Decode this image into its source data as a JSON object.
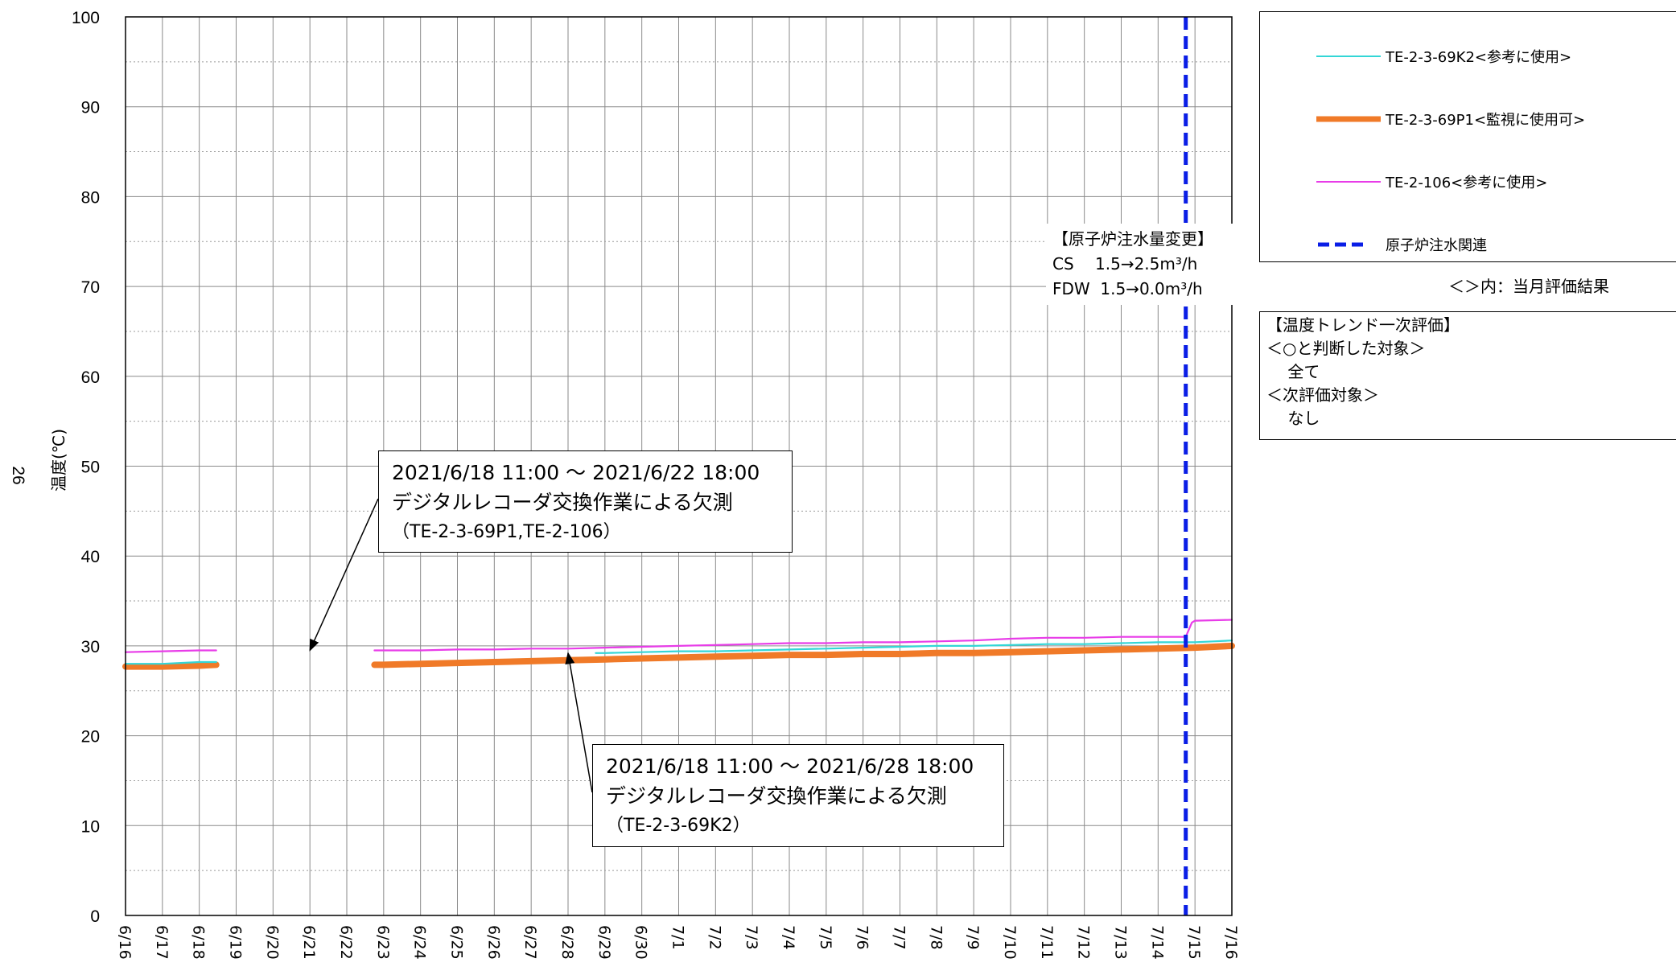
{
  "chart_data": {
    "type": "line",
    "ylabel": "温度(℃)",
    "page_number": "26",
    "ylim": [
      0,
      100
    ],
    "yticks": [
      0,
      10,
      20,
      30,
      40,
      50,
      60,
      70,
      80,
      90,
      100
    ],
    "x_tick_labels": [
      "6/16",
      "6/17",
      "6/18",
      "6/19",
      "6/20",
      "6/21",
      "6/22",
      "6/23",
      "6/24",
      "6/25",
      "6/26",
      "6/27",
      "6/28",
      "6/29",
      "6/30",
      "7/1",
      "7/2",
      "7/3",
      "7/4",
      "7/5",
      "7/6",
      "7/7",
      "7/8",
      "7/9",
      "7/10",
      "7/11",
      "7/12",
      "7/13",
      "7/14",
      "7/15",
      "7/16"
    ],
    "grid": true,
    "legend_position": "right",
    "series": [
      {
        "name": "TE-2-3-69K2<参考に使用>",
        "color": "#33d6d6",
        "segments": [
          [
            [
              "6/16 00:00",
              28.0
            ],
            [
              "6/16 12:00",
              28.0
            ],
            [
              "6/17 00:00",
              28.0
            ],
            [
              "6/17 12:00",
              28.1
            ],
            [
              "6/18 00:00",
              28.2
            ],
            [
              "6/18 11:00",
              28.2
            ]
          ],
          [
            [
              "6/28 18:00",
              29.2
            ],
            [
              "6/29 00:00",
              29.2
            ],
            [
              "6/30 00:00",
              29.3
            ],
            [
              "7/1 00:00",
              29.4
            ],
            [
              "7/2 00:00",
              29.4
            ],
            [
              "7/3 00:00",
              29.5
            ],
            [
              "7/4 00:00",
              29.6
            ],
            [
              "7/5 00:00",
              29.7
            ],
            [
              "7/6 00:00",
              29.8
            ],
            [
              "7/7 00:00",
              29.9
            ],
            [
              "7/8 00:00",
              30.0
            ],
            [
              "7/9 00:00",
              30.0
            ],
            [
              "7/10 00:00",
              30.1
            ],
            [
              "7/11 00:00",
              30.2
            ],
            [
              "7/12 00:00",
              30.2
            ],
            [
              "7/13 00:00",
              30.3
            ],
            [
              "7/14 00:00",
              30.4
            ],
            [
              "7/14 18:00",
              30.4
            ],
            [
              "7/15 00:00",
              30.4
            ],
            [
              "7/15 12:00",
              30.5
            ],
            [
              "7/16 00:00",
              30.6
            ]
          ]
        ]
      },
      {
        "name": "TE-2-3-69P1<監視に使用可>",
        "color": "#f07a28",
        "segments": [
          [
            [
              "6/16 00:00",
              27.7
            ],
            [
              "6/17 00:00",
              27.7
            ],
            [
              "6/18 00:00",
              27.8
            ],
            [
              "6/18 11:00",
              27.9
            ]
          ],
          [
            [
              "6/22 18:00",
              27.9
            ],
            [
              "6/23 00:00",
              27.9
            ],
            [
              "6/24 00:00",
              28.0
            ],
            [
              "6/25 00:00",
              28.1
            ],
            [
              "6/26 00:00",
              28.2
            ],
            [
              "6/27 00:00",
              28.3
            ],
            [
              "6/28 00:00",
              28.4
            ],
            [
              "6/29 00:00",
              28.5
            ],
            [
              "6/30 00:00",
              28.6
            ],
            [
              "7/1 00:00",
              28.7
            ],
            [
              "7/2 00:00",
              28.8
            ],
            [
              "7/3 00:00",
              28.9
            ],
            [
              "7/4 00:00",
              29.0
            ],
            [
              "7/5 00:00",
              29.0
            ],
            [
              "7/6 00:00",
              29.1
            ],
            [
              "7/7 00:00",
              29.1
            ],
            [
              "7/8 00:00",
              29.2
            ],
            [
              "7/9 00:00",
              29.2
            ],
            [
              "7/10 00:00",
              29.3
            ],
            [
              "7/11 00:00",
              29.4
            ],
            [
              "7/12 00:00",
              29.5
            ],
            [
              "7/13 00:00",
              29.6
            ],
            [
              "7/14 00:00",
              29.7
            ],
            [
              "7/15 00:00",
              29.8
            ],
            [
              "7/16 00:00",
              30.0
            ]
          ]
        ]
      },
      {
        "name": "TE-2-106<参考に使用>",
        "color": "#e83ce8",
        "segments": [
          [
            [
              "6/16 00:00",
              29.3
            ],
            [
              "6/17 00:00",
              29.4
            ],
            [
              "6/18 00:00",
              29.5
            ],
            [
              "6/18 11:00",
              29.5
            ]
          ],
          [
            [
              "6/22 18:00",
              29.5
            ],
            [
              "6/23 00:00",
              29.5
            ],
            [
              "6/24 00:00",
              29.5
            ],
            [
              "6/25 00:00",
              29.6
            ],
            [
              "6/26 00:00",
              29.6
            ],
            [
              "6/27 00:00",
              29.7
            ],
            [
              "6/28 00:00",
              29.7
            ],
            [
              "6/29 00:00",
              29.8
            ],
            [
              "6/30 00:00",
              29.9
            ],
            [
              "7/1 00:00",
              30.0
            ],
            [
              "7/2 00:00",
              30.1
            ],
            [
              "7/3 00:00",
              30.2
            ],
            [
              "7/4 00:00",
              30.3
            ],
            [
              "7/5 00:00",
              30.3
            ],
            [
              "7/6 00:00",
              30.4
            ],
            [
              "7/7 00:00",
              30.4
            ],
            [
              "7/8 00:00",
              30.5
            ],
            [
              "7/9 00:00",
              30.6
            ],
            [
              "7/10 00:00",
              30.8
            ],
            [
              "7/11 00:00",
              30.9
            ],
            [
              "7/12 00:00",
              30.9
            ],
            [
              "7/13 00:00",
              31.0
            ],
            [
              "7/14 00:00",
              31.0
            ],
            [
              "7/14 18:00",
              31.0
            ],
            [
              "7/14 22:00",
              32.6
            ],
            [
              "7/15 00:00",
              32.8
            ],
            [
              "7/16 00:00",
              32.9
            ]
          ]
        ]
      }
    ],
    "event_line": {
      "name": "原子炉注水関連",
      "color": "#0a1ee6",
      "x": "7/14 18:00"
    },
    "injection_change": {
      "title": "【原子炉注水量変更】",
      "lines": [
        "CS　 1.5→2.5m³/h",
        "FDW  1.5→0.0m³/h"
      ]
    },
    "annotations": [
      {
        "line1": "2021/6/18 11:00 ～ 2021/6/22 18:00",
        "line2": "デジタルレコーダ交換作業による欠測",
        "line3": "（TE-2-3-69P1,TE-2-106）",
        "arrow_to": [
          "6/21 00:00",
          29.5
        ]
      },
      {
        "line1": "2021/6/18 11:00 ～ 2021/6/28 18:00",
        "line2": "デジタルレコーダ交換作業による欠測",
        "line3": "（TE-2-3-69K2）",
        "arrow_to": [
          "6/28 00:00",
          29.2
        ]
      }
    ],
    "legend_note": "＜＞内：当月評価結果",
    "evaluation": {
      "title": "【温度トレンド一次評価】",
      "lines": [
        "＜○と判断した対象＞",
        "　 全て",
        "＜次評価対象＞",
        "　 なし"
      ]
    }
  }
}
